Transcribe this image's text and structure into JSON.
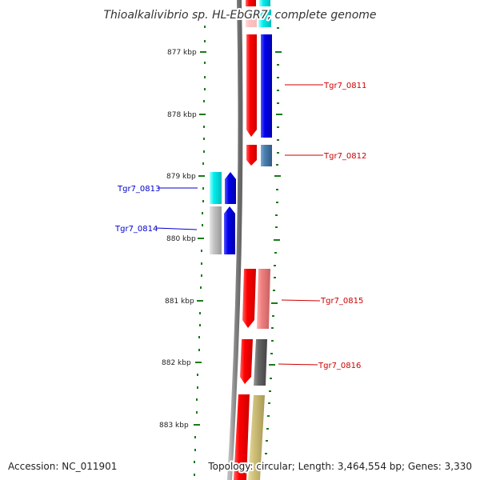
{
  "title": "Thioalkalivibrio sp. HL-EbGR7, complete genome",
  "accession": "Accession: NC_011901",
  "topology": "Topology: circular; Length: 3,464,554 bp; Genes: 3,330",
  "ticks": [
    "877 kbp",
    "878 kbp",
    "879 kbp",
    "880 kbp",
    "881 kbp",
    "882 kbp",
    "883 kbp"
  ],
  "genes": [
    {
      "id": "Tgr7_0811",
      "strand": "+",
      "color": "#0000ee",
      "label_color": "#cc0000"
    },
    {
      "id": "Tgr7_0812",
      "strand": "+",
      "color": "#4a7fb0",
      "label_color": "#cc0000"
    },
    {
      "id": "Tgr7_0813",
      "strand": "-",
      "color": "#00e5ee",
      "label_color": "#0000cc"
    },
    {
      "id": "Tgr7_0814",
      "strand": "-",
      "color": "#bbbbbb",
      "label_color": "#0000cc"
    },
    {
      "id": "Tgr7_0815",
      "strand": "+",
      "color": "#f08080",
      "label_color": "#cc0000"
    },
    {
      "id": "Tgr7_0816",
      "strand": "+",
      "color": "#666666",
      "label_color": "#cc0000"
    }
  ],
  "colors": {
    "cds": "#ee0000",
    "backbone": "#888888",
    "tick": "#1a7a1a",
    "forward_label": "#cc0000",
    "reverse_label": "#0000cc"
  }
}
